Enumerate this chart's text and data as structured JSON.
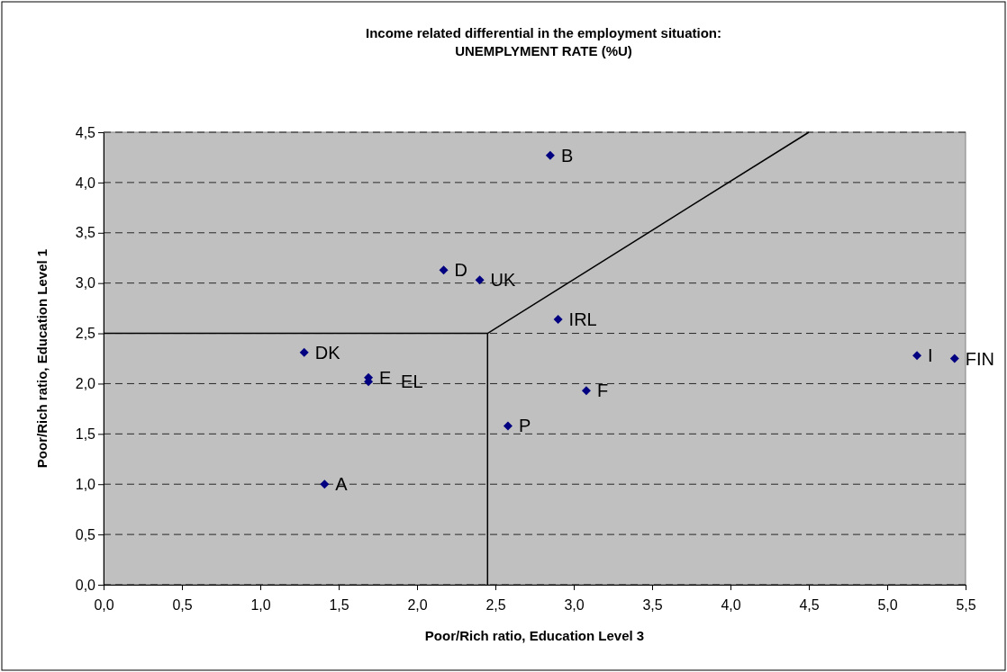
{
  "chart_data": {
    "type": "scatter",
    "title": "Income related differential in the employment situation:\nUNEMPLYMENT RATE (%U)",
    "xlabel": "Poor/Rich ratio, Education Level 3",
    "ylabel": "Poor/Rich ratio, Education Level 1",
    "xlim": [
      0,
      5.5
    ],
    "xticks": [
      {
        "value": 0,
        "label": "0,0"
      },
      {
        "value": 0.5,
        "label": "0,5"
      },
      {
        "value": 1,
        "label": "1,0"
      },
      {
        "value": 1.5,
        "label": "1,5"
      },
      {
        "value": 2,
        "label": "2,0"
      },
      {
        "value": 2.5,
        "label": "2,5"
      },
      {
        "value": 3,
        "label": "3,0"
      },
      {
        "value": 3.5,
        "label": "3,5"
      },
      {
        "value": 4,
        "label": "4,0"
      },
      {
        "value": 4.5,
        "label": "4,5"
      },
      {
        "value": 5,
        "label": "5,0"
      },
      {
        "value": 5.5,
        "label": "5,5"
      }
    ],
    "ylim": [
      0,
      4.5
    ],
    "yticks": [
      {
        "value": 0,
        "label": "0,0"
      },
      {
        "value": 0.5,
        "label": "0,5"
      },
      {
        "value": 1,
        "label": "1,0"
      },
      {
        "value": 1.5,
        "label": "1,5"
      },
      {
        "value": 2,
        "label": "2,0"
      },
      {
        "value": 2.5,
        "label": "2,5"
      },
      {
        "value": 3,
        "label": "3,0"
      },
      {
        "value": 3.5,
        "label": "3,5"
      },
      {
        "value": 4,
        "label": "4,0"
      },
      {
        "value": 4.5,
        "label": "4,5"
      }
    ],
    "grid": "y",
    "marker": "diamond",
    "series": [
      {
        "color": "#000080",
        "x": [
          2.85,
          2.17,
          2.4,
          1.28,
          1.69,
          1.69,
          2.58,
          1.41,
          2.9,
          3.08,
          5.19,
          5.43
        ],
        "values": [
          4.27,
          3.13,
          3.03,
          2.31,
          2.06,
          2.02,
          1.58,
          1.0,
          2.64,
          1.93,
          2.28,
          2.25
        ]
      },
      {
        "type": "line",
        "color": "#000000",
        "line_style": "solid",
        "marker": "none",
        "x": [
          0,
          2.45
        ],
        "values": [
          2.5,
          2.5
        ]
      },
      {
        "type": "line",
        "color": "#000000",
        "line_style": "solid",
        "marker": "none",
        "x": [
          2.45,
          2.45
        ],
        "values": [
          0,
          2.5
        ]
      },
      {
        "type": "line",
        "color": "#000000",
        "line_style": "solid",
        "marker": "none",
        "x": [
          2.45,
          4.5
        ],
        "values": [
          2.5,
          4.5
        ]
      }
    ],
    "annotations": [
      {
        "text": "B",
        "x": 2.85,
        "y": 4.27
      },
      {
        "text": "D",
        "x": 2.17,
        "y": 3.13
      },
      {
        "text": "UK",
        "x": 2.4,
        "y": 3.03
      },
      {
        "text": "DK",
        "x": 1.28,
        "y": 2.31
      },
      {
        "text": "E",
        "x": 1.69,
        "y": 2.06
      },
      {
        "text": "EL",
        "x": 1.69,
        "y": 2.02
      },
      {
        "text": "P",
        "x": 2.58,
        "y": 1.58
      },
      {
        "text": "A",
        "x": 1.41,
        "y": 1.0
      },
      {
        "text": "IRL",
        "x": 2.9,
        "y": 2.64
      },
      {
        "text": "F",
        "x": 3.08,
        "y": 1.93
      },
      {
        "text": "I",
        "x": 5.19,
        "y": 2.28
      },
      {
        "text": "FIN",
        "x": 5.43,
        "y": 2.25
      }
    ]
  }
}
